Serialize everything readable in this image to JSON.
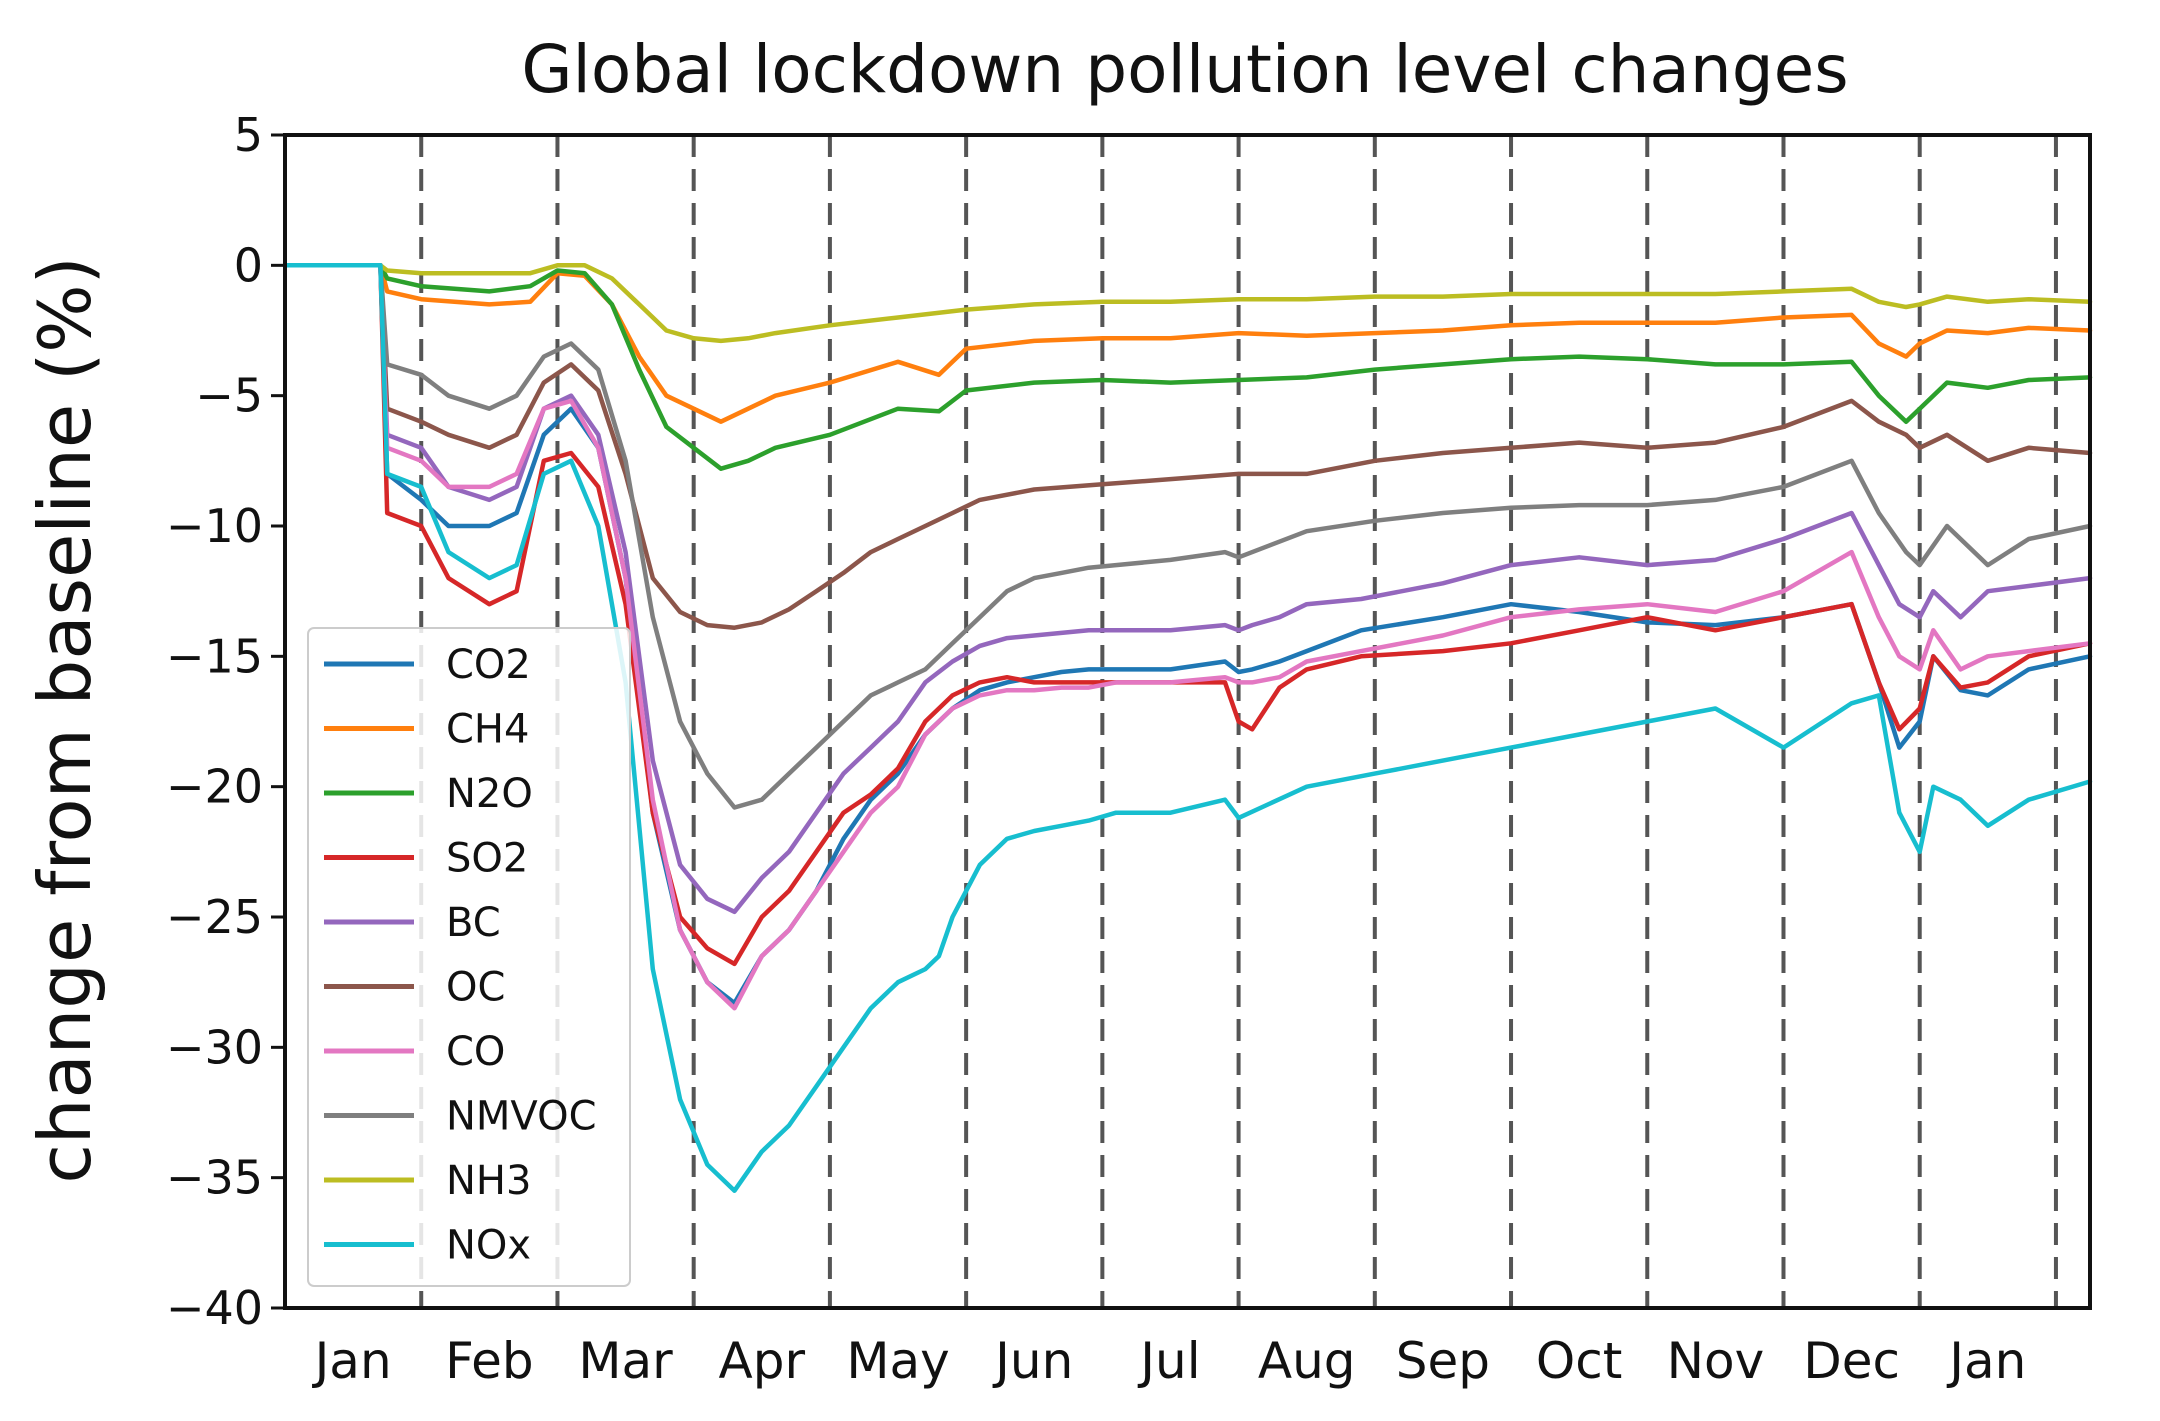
{
  "chart_data": {
    "type": "line",
    "title": "Global lockdown pollution level changes",
    "ylabel": "change from baseline (%)",
    "xlabel": "",
    "ylim": [
      -40,
      5
    ],
    "yticks": [
      "5",
      "0",
      "−5",
      "−10",
      "−15",
      "−20",
      "−25",
      "−30",
      "−35",
      "−40"
    ],
    "ytick_values": [
      5,
      0,
      -5,
      -10,
      -15,
      -20,
      -25,
      -30,
      -35,
      -40
    ],
    "xlim": [
      0,
      13.25
    ],
    "month_labels": [
      "Jan",
      "Feb",
      "Mar",
      "Apr",
      "May",
      "Jun",
      "Jul",
      "Aug",
      "Sep",
      "Oct",
      "Nov",
      "Dec",
      "Jan"
    ],
    "month_label_positions": [
      0.5,
      1.5,
      2.5,
      3.5,
      4.5,
      5.5,
      6.5,
      7.5,
      8.5,
      9.5,
      10.5,
      11.5,
      12.5
    ],
    "vlines": [
      1,
      2,
      3,
      4,
      5,
      6,
      7,
      8,
      9,
      10,
      11,
      12,
      13
    ],
    "grid": false,
    "legend_position": "lower-left",
    "series": [
      {
        "name": "CO2",
        "color": "#1f77b4",
        "x": [
          0,
          0.7,
          0.75,
          1.0,
          1.2,
          1.5,
          1.7,
          1.9,
          2.1,
          2.3,
          2.5,
          2.7,
          2.9,
          3.1,
          3.3,
          3.5,
          3.7,
          3.9,
          4.1,
          4.3,
          4.5,
          4.7,
          4.9,
          5.1,
          5.3,
          5.5,
          5.7,
          5.9,
          6.1,
          6.5,
          6.9,
          7.0,
          7.1,
          7.3,
          7.5,
          7.9,
          8.5,
          9.0,
          9.5,
          10.0,
          10.5,
          11.0,
          11.5,
          11.7,
          11.85,
          12.0,
          12.1,
          12.3,
          12.5,
          12.8,
          13.25
        ],
        "y": [
          0,
          0,
          -8,
          -9,
          -10,
          -10,
          -9.5,
          -6.5,
          -5.5,
          -7,
          -12,
          -21,
          -25.5,
          -27.5,
          -28.3,
          -26.5,
          -25.5,
          -24,
          -22,
          -20.5,
          -19.5,
          -18,
          -17,
          -16.3,
          -16,
          -15.8,
          -15.6,
          -15.5,
          -15.5,
          -15.5,
          -15.2,
          -15.6,
          -15.5,
          -15.2,
          -14.8,
          -14,
          -13.5,
          -13,
          -13.3,
          -13.7,
          -13.8,
          -13.5,
          -13,
          -16,
          -18.5,
          -17.5,
          -15,
          -16.3,
          -16.5,
          -15.5,
          -15
        ]
      },
      {
        "name": "CH4",
        "color": "#ff7f0e",
        "x": [
          0,
          0.7,
          0.75,
          1.0,
          1.5,
          1.8,
          2.0,
          2.2,
          2.4,
          2.6,
          2.8,
          3.0,
          3.2,
          3.4,
          3.6,
          4.0,
          4.5,
          4.8,
          5.0,
          5.5,
          6.0,
          6.5,
          7.0,
          7.5,
          8.0,
          8.5,
          9.0,
          9.5,
          10.0,
          10.5,
          11.0,
          11.5,
          11.7,
          11.9,
          12.0,
          12.2,
          12.5,
          12.8,
          13.25
        ],
        "y": [
          0,
          0,
          -1,
          -1.3,
          -1.5,
          -1.4,
          -0.3,
          -0.4,
          -1.5,
          -3.5,
          -5,
          -5.5,
          -6,
          -5.5,
          -5,
          -4.5,
          -3.7,
          -4.2,
          -3.2,
          -2.9,
          -2.8,
          -2.8,
          -2.6,
          -2.7,
          -2.6,
          -2.5,
          -2.3,
          -2.2,
          -2.2,
          -2.2,
          -2.0,
          -1.9,
          -3.0,
          -3.5,
          -3.0,
          -2.5,
          -2.6,
          -2.4,
          -2.5
        ]
      },
      {
        "name": "N2O",
        "color": "#2ca02c",
        "x": [
          0,
          0.7,
          0.75,
          1.0,
          1.5,
          1.8,
          2.0,
          2.2,
          2.4,
          2.6,
          2.8,
          3.0,
          3.2,
          3.4,
          3.6,
          4.0,
          4.5,
          4.8,
          5.0,
          5.5,
          6.0,
          6.5,
          7.0,
          7.5,
          8.0,
          8.5,
          9.0,
          9.5,
          10.0,
          10.5,
          11.0,
          11.5,
          11.7,
          11.9,
          12.0,
          12.2,
          12.5,
          12.8,
          13.25
        ],
        "y": [
          0,
          0,
          -0.5,
          -0.8,
          -1.0,
          -0.8,
          -0.2,
          -0.3,
          -1.5,
          -4,
          -6.2,
          -7,
          -7.8,
          -7.5,
          -7,
          -6.5,
          -5.5,
          -5.6,
          -4.8,
          -4.5,
          -4.4,
          -4.5,
          -4.4,
          -4.3,
          -4.0,
          -3.8,
          -3.6,
          -3.5,
          -3.6,
          -3.8,
          -3.8,
          -3.7,
          -5.0,
          -6.0,
          -5.5,
          -4.5,
          -4.7,
          -4.4,
          -4.3
        ]
      },
      {
        "name": "SO2",
        "color": "#d62728",
        "x": [
          0,
          0.7,
          0.75,
          1.0,
          1.2,
          1.5,
          1.7,
          1.9,
          2.1,
          2.3,
          2.5,
          2.7,
          2.9,
          3.1,
          3.3,
          3.5,
          3.7,
          3.9,
          4.1,
          4.3,
          4.5,
          4.7,
          4.9,
          5.1,
          5.3,
          5.5,
          5.7,
          5.9,
          6.1,
          6.5,
          6.9,
          7.0,
          7.1,
          7.3,
          7.5,
          7.9,
          8.5,
          9.0,
          9.5,
          10.0,
          10.5,
          11.0,
          11.5,
          11.7,
          11.85,
          12.0,
          12.1,
          12.3,
          12.5,
          12.8,
          13.25
        ],
        "y": [
          0,
          0,
          -9.5,
          -10,
          -12,
          -13,
          -12.5,
          -7.5,
          -7.2,
          -8.5,
          -13,
          -21,
          -25,
          -26.2,
          -26.8,
          -25,
          -24,
          -22.5,
          -21,
          -20.3,
          -19.3,
          -17.5,
          -16.5,
          -16,
          -15.8,
          -16,
          -16,
          -16,
          -16,
          -16,
          -16,
          -17.5,
          -17.8,
          -16.2,
          -15.5,
          -15,
          -14.8,
          -14.5,
          -14,
          -13.5,
          -14,
          -13.5,
          -13,
          -16,
          -17.8,
          -17.0,
          -15,
          -16.2,
          -16,
          -15,
          -14.5
        ]
      },
      {
        "name": "BC",
        "color": "#9467bd",
        "x": [
          0,
          0.7,
          0.75,
          1.0,
          1.2,
          1.5,
          1.7,
          1.9,
          2.1,
          2.3,
          2.5,
          2.7,
          2.9,
          3.1,
          3.3,
          3.5,
          3.7,
          3.9,
          4.1,
          4.3,
          4.5,
          4.7,
          4.9,
          5.1,
          5.3,
          5.5,
          5.7,
          5.9,
          6.1,
          6.5,
          6.9,
          7.0,
          7.1,
          7.3,
          7.5,
          7.9,
          8.5,
          9.0,
          9.5,
          10.0,
          10.5,
          11.0,
          11.5,
          11.7,
          11.85,
          12.0,
          12.1,
          12.3,
          12.5,
          12.8,
          13.25
        ],
        "y": [
          0,
          0,
          -6.5,
          -7,
          -8.5,
          -9,
          -8.5,
          -5.5,
          -5.0,
          -6.5,
          -11,
          -19,
          -23,
          -24.3,
          -24.8,
          -23.5,
          -22.5,
          -21,
          -19.5,
          -18.5,
          -17.5,
          -16,
          -15.2,
          -14.6,
          -14.3,
          -14.2,
          -14.1,
          -14.0,
          -14.0,
          -14.0,
          -13.8,
          -14.0,
          -13.8,
          -13.5,
          -13.0,
          -12.8,
          -12.2,
          -11.5,
          -11.2,
          -11.5,
          -11.3,
          -10.5,
          -9.5,
          -11.5,
          -13.0,
          -13.5,
          -12.5,
          -13.5,
          -12.5,
          -12.3,
          -12.0
        ]
      },
      {
        "name": "OC",
        "color": "#8c564b",
        "x": [
          0,
          0.7,
          0.75,
          1.0,
          1.2,
          1.5,
          1.7,
          1.9,
          2.1,
          2.3,
          2.5,
          2.7,
          2.9,
          3.1,
          3.3,
          3.5,
          3.7,
          3.9,
          4.1,
          4.3,
          4.5,
          4.7,
          4.9,
          5.1,
          5.5,
          6.0,
          6.5,
          7.0,
          7.5,
          8.0,
          8.5,
          9.0,
          9.5,
          10.0,
          10.5,
          11.0,
          11.5,
          11.7,
          11.9,
          12.0,
          12.2,
          12.5,
          12.8,
          13.25
        ],
        "y": [
          0,
          0,
          -5.5,
          -6,
          -6.5,
          -7,
          -6.5,
          -4.5,
          -3.8,
          -4.8,
          -8,
          -12,
          -13.3,
          -13.8,
          -13.9,
          -13.7,
          -13.2,
          -12.5,
          -11.8,
          -11,
          -10.5,
          -10,
          -9.5,
          -9,
          -8.6,
          -8.4,
          -8.2,
          -8.0,
          -8.0,
          -7.5,
          -7.2,
          -7.0,
          -6.8,
          -7.0,
          -6.8,
          -6.2,
          -5.2,
          -6.0,
          -6.5,
          -7.0,
          -6.5,
          -7.5,
          -7.0,
          -7.2
        ]
      },
      {
        "name": "CO",
        "color": "#e377c2",
        "x": [
          0,
          0.7,
          0.75,
          1.0,
          1.2,
          1.5,
          1.7,
          1.9,
          2.1,
          2.3,
          2.5,
          2.7,
          2.9,
          3.1,
          3.3,
          3.5,
          3.7,
          3.9,
          4.1,
          4.3,
          4.5,
          4.7,
          4.9,
          5.1,
          5.3,
          5.5,
          5.7,
          5.9,
          6.1,
          6.5,
          6.9,
          7.0,
          7.1,
          7.3,
          7.5,
          7.9,
          8.5,
          9.0,
          9.5,
          10.0,
          10.5,
          11.0,
          11.5,
          11.7,
          11.85,
          12.0,
          12.1,
          12.3,
          12.5,
          12.8,
          13.25
        ],
        "y": [
          0,
          0,
          -7,
          -7.5,
          -8.5,
          -8.5,
          -8,
          -5.5,
          -5.2,
          -7,
          -12,
          -20.5,
          -25.5,
          -27.5,
          -28.5,
          -26.5,
          -25.5,
          -24,
          -22.5,
          -21,
          -20,
          -18,
          -17,
          -16.5,
          -16.3,
          -16.3,
          -16.2,
          -16.2,
          -16.0,
          -16.0,
          -15.8,
          -16.0,
          -16.0,
          -15.8,
          -15.2,
          -14.8,
          -14.2,
          -13.5,
          -13.2,
          -13.0,
          -13.3,
          -12.5,
          -11.0,
          -13.5,
          -15.0,
          -15.5,
          -14.0,
          -15.5,
          -15.0,
          -14.8,
          -14.5
        ]
      },
      {
        "name": "NMVOC",
        "color": "#7f7f7f",
        "x": [
          0,
          0.7,
          0.75,
          1.0,
          1.2,
          1.5,
          1.7,
          1.9,
          2.1,
          2.3,
          2.5,
          2.7,
          2.9,
          3.1,
          3.3,
          3.5,
          3.7,
          3.9,
          4.1,
          4.3,
          4.5,
          4.7,
          4.9,
          5.1,
          5.3,
          5.5,
          5.7,
          5.9,
          6.1,
          6.5,
          6.9,
          7.0,
          7.5,
          8.0,
          8.5,
          9.0,
          9.5,
          10.0,
          10.5,
          11.0,
          11.5,
          11.7,
          11.9,
          12.0,
          12.2,
          12.5,
          12.8,
          13.25
        ],
        "y": [
          0,
          0,
          -3.8,
          -4.2,
          -5.0,
          -5.5,
          -5.0,
          -3.5,
          -3.0,
          -4.0,
          -7.5,
          -13.5,
          -17.5,
          -19.5,
          -20.8,
          -20.5,
          -19.5,
          -18.5,
          -17.5,
          -16.5,
          -16.0,
          -15.5,
          -14.5,
          -13.5,
          -12.5,
          -12.0,
          -11.8,
          -11.6,
          -11.5,
          -11.3,
          -11.0,
          -11.2,
          -10.2,
          -9.8,
          -9.5,
          -9.3,
          -9.2,
          -9.2,
          -9.0,
          -8.5,
          -7.5,
          -9.5,
          -11.0,
          -11.5,
          -10.0,
          -11.5,
          -10.5,
          -10.0
        ]
      },
      {
        "name": "NH3",
        "color": "#bcbd22",
        "x": [
          0,
          0.7,
          0.75,
          1.0,
          1.5,
          1.8,
          2.0,
          2.2,
          2.4,
          2.6,
          2.8,
          3.0,
          3.2,
          3.4,
          3.6,
          4.0,
          4.5,
          5.0,
          5.5,
          6.0,
          6.5,
          7.0,
          7.5,
          8.0,
          8.5,
          9.0,
          9.5,
          10.0,
          10.5,
          11.0,
          11.5,
          11.7,
          11.9,
          12.0,
          12.2,
          12.5,
          12.8,
          13.25
        ],
        "y": [
          0,
          0,
          -0.2,
          -0.3,
          -0.3,
          -0.3,
          0.0,
          0.0,
          -0.5,
          -1.5,
          -2.5,
          -2.8,
          -2.9,
          -2.8,
          -2.6,
          -2.3,
          -2.0,
          -1.7,
          -1.5,
          -1.4,
          -1.4,
          -1.3,
          -1.3,
          -1.2,
          -1.2,
          -1.1,
          -1.1,
          -1.1,
          -1.1,
          -1.0,
          -0.9,
          -1.4,
          -1.6,
          -1.5,
          -1.2,
          -1.4,
          -1.3,
          -1.4
        ]
      },
      {
        "name": "NOx",
        "color": "#17becf",
        "x": [
          0,
          0.7,
          0.75,
          1.0,
          1.2,
          1.5,
          1.7,
          1.9,
          2.1,
          2.3,
          2.5,
          2.7,
          2.9,
          3.1,
          3.3,
          3.5,
          3.7,
          3.9,
          4.1,
          4.3,
          4.5,
          4.7,
          4.8,
          4.9,
          5.1,
          5.3,
          5.5,
          5.7,
          5.9,
          6.1,
          6.5,
          6.9,
          7.0,
          7.5,
          8.0,
          8.5,
          9.0,
          9.5,
          10.0,
          10.5,
          11.0,
          11.5,
          11.7,
          11.85,
          12.0,
          12.1,
          12.3,
          12.5,
          12.8,
          13.25
        ],
        "y": [
          0,
          0,
          -8.0,
          -8.5,
          -11.0,
          -12.0,
          -11.5,
          -8.0,
          -7.5,
          -10.0,
          -16.0,
          -27.0,
          -32.0,
          -34.5,
          -35.5,
          -34.0,
          -33.0,
          -31.5,
          -30.0,
          -28.5,
          -27.5,
          -27.0,
          -26.5,
          -25.0,
          -23.0,
          -22.0,
          -21.7,
          -21.5,
          -21.3,
          -21.0,
          -21.0,
          -20.5,
          -21.2,
          -20.0,
          -19.5,
          -19.0,
          -18.5,
          -18.0,
          -17.5,
          -17.0,
          -18.5,
          -16.8,
          -16.5,
          -21.0,
          -22.5,
          -20.0,
          -20.5,
          -21.5,
          -20.5,
          -19.8
        ]
      }
    ]
  }
}
